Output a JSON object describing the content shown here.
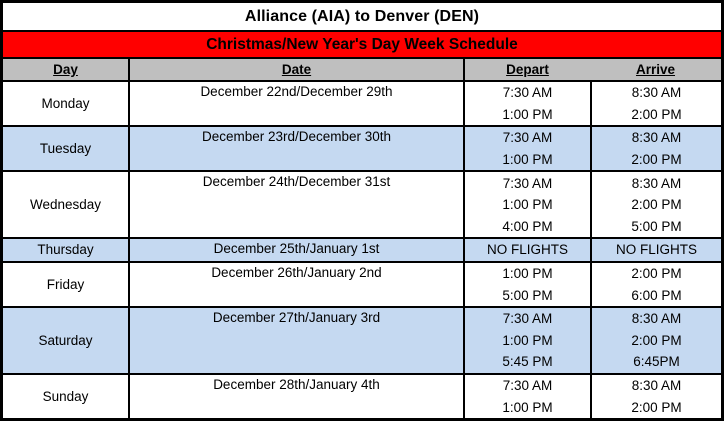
{
  "title": "Alliance (AIA) to Denver (DEN)",
  "banner": "Christmas/New Year's Day Week Schedule",
  "columns": {
    "day": "Day",
    "date": "Date",
    "depart": "Depart",
    "arrive": "Arrive"
  },
  "colors": {
    "banner_red": "#FF0000",
    "header_gray": "#BFBFBF",
    "highlight_blue": "#C5D9F1",
    "border_black": "#000000",
    "text_black": "#000000"
  },
  "schedule": [
    {
      "day": "Monday",
      "date": "December 22nd/December 29th",
      "highlight": false,
      "flights": [
        {
          "depart": "7:30 AM",
          "arrive": "8:30 AM"
        },
        {
          "depart": "1:00 PM",
          "arrive": "2:00 PM"
        }
      ]
    },
    {
      "day": "Tuesday",
      "date": "December 23rd/December 30th",
      "highlight": true,
      "flights": [
        {
          "depart": "7:30 AM",
          "arrive": "8:30 AM"
        },
        {
          "depart": "1:00 PM",
          "arrive": "2:00 PM"
        }
      ]
    },
    {
      "day": "Wednesday",
      "date": "December 24th/December 31st",
      "highlight": false,
      "flights": [
        {
          "depart": "7:30 AM",
          "arrive": "8:30 AM"
        },
        {
          "depart": "1:00 PM",
          "arrive": "2:00 PM"
        },
        {
          "depart": "4:00 PM",
          "arrive": "5:00 PM"
        }
      ]
    },
    {
      "day": "Thursday",
      "date": "December 25th/January 1st",
      "highlight": true,
      "flights": [
        {
          "depart": "NO FLIGHTS",
          "arrive": "NO FLIGHTS"
        }
      ]
    },
    {
      "day": "Friday",
      "date": "December 26th/January 2nd",
      "highlight": false,
      "flights": [
        {
          "depart": "1:00 PM",
          "arrive": "2:00 PM"
        },
        {
          "depart": "5:00 PM",
          "arrive": "6:00 PM"
        }
      ]
    },
    {
      "day": "Saturday",
      "date": "December 27th/January 3rd",
      "highlight": true,
      "flights": [
        {
          "depart": "7:30 AM",
          "arrive": "8:30 AM"
        },
        {
          "depart": "1:00 PM",
          "arrive": "2:00 PM"
        },
        {
          "depart": "5:45 PM",
          "arrive": "6:45PM"
        }
      ]
    },
    {
      "day": "Sunday",
      "date": "December 28th/January 4th",
      "highlight": false,
      "flights": [
        {
          "depart": "7:30 AM",
          "arrive": "8:30 AM"
        },
        {
          "depart": "1:00 PM",
          "arrive": "2:00 PM"
        }
      ]
    }
  ]
}
